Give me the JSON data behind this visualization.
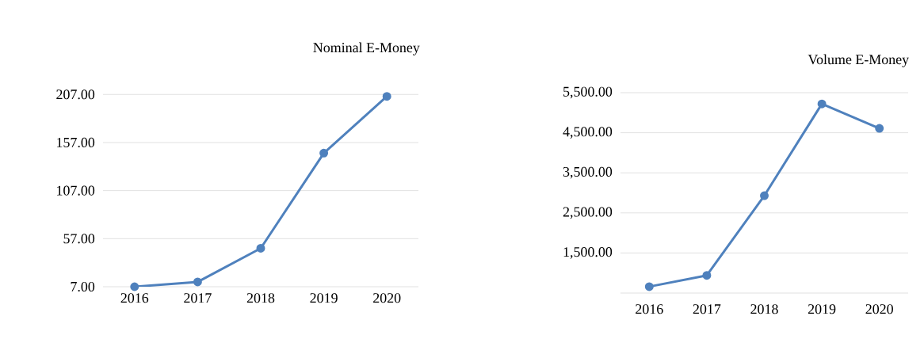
{
  "chart_data": [
    {
      "type": "line",
      "title": "Nominal E-Money",
      "categories": [
        "2016",
        "2017",
        "2018",
        "2019",
        "2020"
      ],
      "series": [
        {
          "color": "#4f81bd",
          "values": [
            7,
            12,
            47,
            146,
            205
          ]
        }
      ],
      "ylim": [
        7,
        207
      ],
      "yticks": [
        {
          "value": 7,
          "label": "7.00"
        },
        {
          "value": 57,
          "label": "57.00"
        },
        {
          "value": 107,
          "label": "107.00"
        },
        {
          "value": 157,
          "label": "157.00"
        },
        {
          "value": 207,
          "label": "207.00"
        }
      ],
      "grid": "y",
      "marker": "circle",
      "line_style": "solid"
    },
    {
      "type": "line",
      "title": "Volume E-Money",
      "categories": [
        "2016",
        "2017",
        "2018",
        "2019",
        "2020"
      ],
      "series": [
        {
          "color": "#4f81bd",
          "values": [
            660,
            940,
            2930,
            5220,
            4610
          ]
        }
      ],
      "ylim": [
        500,
        5500
      ],
      "yticks": [
        {
          "value": 500,
          "label": null
        },
        {
          "value": 1500,
          "label": "1,500.00"
        },
        {
          "value": 2500,
          "label": "2,500.00"
        },
        {
          "value": 3500,
          "label": "3,500.00"
        },
        {
          "value": 4500,
          "label": "4,500.00"
        },
        {
          "value": 5500,
          "label": "5,500.00"
        }
      ],
      "grid": "y",
      "marker": "circle",
      "line_style": "solid"
    }
  ]
}
